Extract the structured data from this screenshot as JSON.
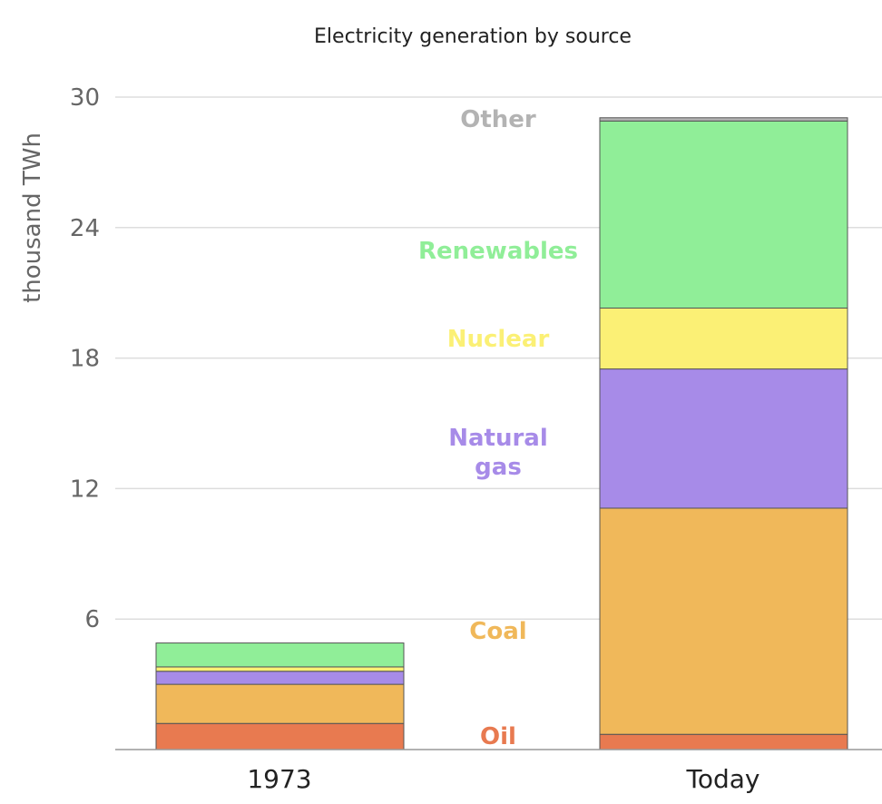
{
  "chart_data": {
    "type": "bar",
    "stacked": true,
    "title": "Electricity generation by source",
    "xlabel": "",
    "ylabel": "thousand TWh",
    "ylim": [
      0,
      30
    ],
    "yticks": [
      "6",
      "12",
      "18",
      "24",
      "30"
    ],
    "grid": true,
    "categories": [
      "1973",
      "Today"
    ],
    "series": [
      {
        "name": "Oil",
        "color": "#E87A50",
        "values": [
          1.2,
          0.7
        ]
      },
      {
        "name": "Coal",
        "color": "#F0B85A",
        "values": [
          1.8,
          10.4
        ]
      },
      {
        "name": "Natural gas",
        "name_lines": [
          "Natural",
          "gas"
        ],
        "color": "#A78BE8",
        "values": [
          0.6,
          6.4
        ]
      },
      {
        "name": "Nuclear",
        "color": "#FBF075",
        "values": [
          0.2,
          2.8
        ]
      },
      {
        "name": "Renewables",
        "color": "#90EE98",
        "values": [
          1.1,
          8.6
        ]
      },
      {
        "name": "Other",
        "color": "#B3B3B3",
        "values": [
          0.0,
          0.15
        ]
      }
    ]
  }
}
